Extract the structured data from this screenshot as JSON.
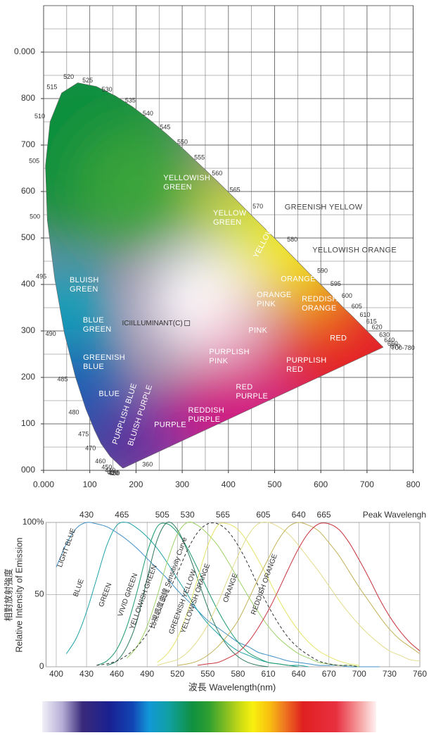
{
  "chart_data": [
    {
      "type": "chromaticity",
      "xlim": [
        0,
        800
      ],
      "ylim": [
        0,
        1000
      ],
      "xticks": [
        {
          "value": 0,
          "label": "0.000"
        },
        100,
        200,
        300,
        400,
        500,
        600,
        700,
        800
      ],
      "yticks": [
        {
          "value": 0,
          "label": "000"
        },
        100,
        200,
        300,
        400,
        500,
        600,
        700,
        800,
        {
          "value": 900,
          "label": "0.000"
        }
      ],
      "grid": true,
      "minor_grid": true,
      "locus": {
        "wavelengths": [
          400,
          420,
          430,
          440,
          450,
          460,
          470,
          475,
          480,
          485,
          490,
          495,
          500,
          505,
          510,
          515,
          520,
          525,
          530,
          535,
          540,
          545,
          550,
          555,
          560,
          565,
          570,
          580,
          590,
          595,
          600,
          605,
          610,
          615,
          620,
          630,
          640,
          650,
          670,
          "700-780"
        ],
        "x": [
          173,
          171,
          169,
          164,
          157,
          144,
          124,
          110,
          91,
          69,
          45,
          24,
          8,
          4,
          14,
          39,
          74,
          114,
          155,
          193,
          230,
          266,
          302,
          337,
          373,
          409,
          444,
          513,
          575,
          603,
          627,
          648,
          666,
          680,
          692,
          708,
          719,
          726,
          732,
          735
        ],
        "y": [
          5,
          5,
          7,
          11,
          18,
          30,
          58,
          87,
          133,
          201,
          295,
          413,
          538,
          655,
          750,
          812,
          834,
          826,
          806,
          782,
          754,
          724,
          692,
          659,
          625,
          590,
          555,
          487,
          424,
          397,
          373,
          351,
          334,
          320,
          308,
          292,
          281,
          274,
          268,
          265
        ]
      },
      "illuminant": {
        "label": "ICIILLUMINANT(C)",
        "x": 310,
        "y": 316
      },
      "regions": [
        {
          "text": "YELLOWISH\nGREEN",
          "x": 310,
          "y": 618
        },
        {
          "text": "YELLOW\nGREEN",
          "x": 403,
          "y": 542
        },
        {
          "text": "YELLOW",
          "x": 476,
          "y": 489
        },
        {
          "text": "GREENISH YELLOW",
          "x": 606,
          "y": 565
        },
        {
          "text": "YELLOWISH ORANGE",
          "x": 673,
          "y": 473
        },
        {
          "text": "ORANGE",
          "x": 551,
          "y": 411
        },
        {
          "text": "ORANGE\nPINK",
          "x": 499,
          "y": 367
        },
        {
          "text": "REDDISH\nORANGE",
          "x": 598,
          "y": 358
        },
        {
          "text": "RED",
          "x": 638,
          "y": 283
        },
        {
          "text": "PINK",
          "x": 464,
          "y": 300
        },
        {
          "text": "PURPLISH\nPINK",
          "x": 402,
          "y": 244
        },
        {
          "text": "PURPLISH\nRED",
          "x": 569,
          "y": 226
        },
        {
          "text": "RED\nPURPLE",
          "x": 451,
          "y": 168
        },
        {
          "text": "REDDISH\nPURPLE",
          "x": 352,
          "y": 118
        },
        {
          "text": "PURPLE",
          "x": 274,
          "y": 97
        },
        {
          "text": "BLUISH PURPLE",
          "x": 210,
          "y": 118
        },
        {
          "text": "PURPLISH BLUE",
          "x": 177,
          "y": 121
        },
        {
          "text": "BLUE",
          "x": 142,
          "y": 164
        },
        {
          "text": "GREENISH\nBLUE",
          "x": 131,
          "y": 232
        },
        {
          "text": "BLUE\nGREEN",
          "x": 116,
          "y": 312
        },
        {
          "text": "BLUISH\nGREEN",
          "x": 88,
          "y": 398
        }
      ],
      "annotations": [
        {
          "text": "360",
          "x": 225,
          "y": 12
        }
      ]
    },
    {
      "type": "line",
      "xlim": [
        390,
        760
      ],
      "ylim": [
        0,
        100
      ],
      "xticks": [
        400,
        430,
        460,
        490,
        520,
        550,
        580,
        610,
        640,
        670,
        700,
        730,
        760
      ],
      "yticks": [
        0,
        50,
        {
          "value": 100,
          "label": "100%"
        }
      ],
      "grid": true,
      "xlabel": "波長 Wavelength(nm)",
      "ylabel": [
        "相對放射強度",
        "Relative Intensity of Emission"
      ],
      "peak_title": "Peak Wavelengh",
      "peak_labels": [
        430,
        465,
        505,
        530,
        565,
        605,
        640,
        665
      ],
      "x": [
        400,
        410,
        420,
        430,
        440,
        450,
        460,
        470,
        480,
        490,
        500,
        510,
        520,
        530,
        540,
        550,
        560,
        570,
        580,
        590,
        600,
        610,
        620,
        630,
        640,
        650,
        660,
        670,
        680,
        690,
        700,
        710,
        720,
        730,
        740,
        750,
        760
      ],
      "series": [
        {
          "name": "LIGHT BLUE",
          "color": "#3f8fc4",
          "values": [
            69,
            85,
            96,
            100,
            99,
            97,
            93,
            88,
            82,
            75,
            68,
            61,
            53,
            46,
            39,
            32,
            27,
            22,
            17,
            14,
            10,
            8,
            6,
            4,
            3,
            2,
            1,
            1,
            1,
            0,
            0,
            0,
            0,
            null,
            null,
            null,
            null
          ]
        },
        {
          "name": "BLUE",
          "color": "#22a3a8",
          "values": [
            null,
            9,
            20,
            38,
            61,
            84,
            98,
            100,
            96,
            90,
            82,
            72,
            61,
            50,
            39,
            30,
            23,
            16,
            11,
            8,
            5,
            3,
            2,
            1,
            1,
            0,
            null,
            null,
            null,
            null,
            null,
            null,
            null,
            null,
            null,
            null,
            null
          ]
        },
        {
          "name": "GREEN",
          "color": "#1d9a6c",
          "values": [
            null,
            null,
            null,
            null,
            1,
            4,
            12,
            28,
            52,
            79,
            97,
            99,
            93,
            82,
            68,
            53,
            39,
            27,
            17,
            10,
            6,
            3,
            2,
            1,
            0,
            null,
            null,
            null,
            null,
            null,
            null,
            null,
            null,
            null,
            null,
            null,
            null
          ]
        },
        {
          "name": "VIVID GREEN",
          "color": "#2e7a5e",
          "values": [
            null,
            null,
            null,
            null,
            null,
            1,
            4,
            14,
            32,
            61,
            88,
            100,
            95,
            80,
            61,
            41,
            25,
            14,
            7,
            3,
            1,
            0,
            null,
            null,
            null,
            null,
            null,
            null,
            null,
            null,
            null,
            null,
            null,
            null,
            null,
            null,
            null
          ]
        },
        {
          "name": "YELLOWISH GREEN",
          "color": "#9ed36a",
          "values": [
            null,
            null,
            null,
            null,
            null,
            null,
            null,
            6,
            14,
            28,
            49,
            73,
            92,
            100,
            98,
            92,
            84,
            73,
            61,
            49,
            38,
            28,
            20,
            14,
            9,
            6,
            3,
            2,
            1,
            1,
            0,
            null,
            null,
            null,
            null,
            null,
            null
          ]
        },
        {
          "name": "比視感度曲線 Sensitivity Curve",
          "color": "#333333",
          "dash": true,
          "values": [
            null,
            null,
            null,
            null,
            1,
            2,
            4,
            8,
            14,
            23,
            35,
            50,
            65,
            81,
            93,
            99,
            99,
            94,
            84,
            71,
            56,
            42,
            30,
            20,
            13,
            8,
            4,
            2,
            1,
            1,
            0,
            null,
            null,
            null,
            null,
            null,
            null
          ]
        },
        {
          "name": "GREENISH YELLOW",
          "color": "#e4e46a",
          "values": [
            null,
            null,
            null,
            null,
            null,
            null,
            null,
            null,
            null,
            null,
            3,
            9,
            20,
            38,
            61,
            84,
            98,
            99,
            95,
            86,
            74,
            61,
            47,
            35,
            25,
            17,
            11,
            7,
            4,
            2,
            1,
            null,
            null,
            null,
            null,
            null,
            null
          ]
        },
        {
          "name": "YELLOWISH ORANGE",
          "color": "#e2dc8c",
          "values": [
            null,
            null,
            null,
            null,
            null,
            null,
            null,
            null,
            null,
            null,
            1,
            3,
            5,
            10,
            18,
            29,
            44,
            61,
            77,
            91,
            99,
            100,
            97,
            92,
            84,
            75,
            66,
            56,
            46,
            37,
            29,
            22,
            16,
            11,
            8,
            5,
            4
          ]
        },
        {
          "name": "ORANGE",
          "color": "#c4b25a",
          "values": [
            null,
            null,
            null,
            null,
            null,
            null,
            null,
            null,
            null,
            null,
            null,
            null,
            1,
            2,
            4,
            8,
            14,
            22,
            32,
            46,
            61,
            75,
            88,
            97,
            100,
            98,
            94,
            86,
            77,
            66,
            55,
            45,
            35,
            26,
            19,
            14,
            9
          ]
        },
        {
          "name": "REDDISH ORANGE",
          "color": "#c8343c",
          "values": [
            null,
            null,
            null,
            null,
            null,
            null,
            null,
            null,
            null,
            null,
            null,
            null,
            null,
            null,
            1,
            2,
            3,
            6,
            10,
            17,
            27,
            39,
            53,
            68,
            82,
            93,
            99,
            99,
            95,
            86,
            74,
            61,
            47,
            35,
            25,
            17,
            11
          ]
        }
      ]
    }
  ]
}
